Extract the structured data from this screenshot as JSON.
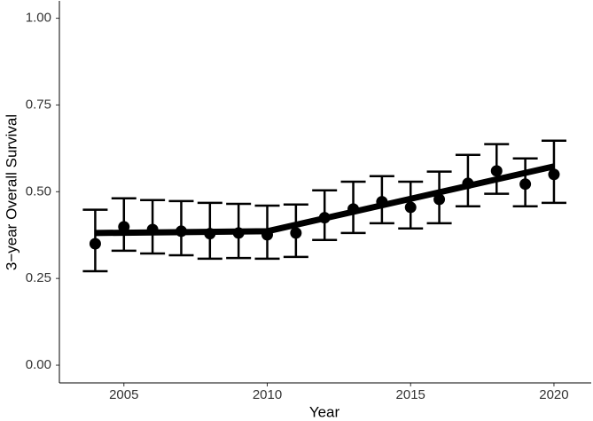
{
  "chart_data": {
    "type": "errorbar",
    "x_label": "Year",
    "y_label": "3−year Overall Survival",
    "x": [
      2004,
      2005,
      2006,
      2007,
      2008,
      2009,
      2010,
      2011,
      2012,
      2013,
      2014,
      2015,
      2016,
      2017,
      2018,
      2019,
      2020
    ],
    "values": [
      0.35,
      0.399,
      0.391,
      0.386,
      0.379,
      0.381,
      0.376,
      0.381,
      0.425,
      0.45,
      0.471,
      0.455,
      0.478,
      0.524,
      0.56,
      0.522,
      0.55
    ],
    "lower": [
      0.271,
      0.33,
      0.322,
      0.317,
      0.307,
      0.309,
      0.307,
      0.312,
      0.361,
      0.381,
      0.409,
      0.394,
      0.409,
      0.458,
      0.494,
      0.458,
      0.468
    ],
    "upper": [
      0.448,
      0.481,
      0.476,
      0.473,
      0.468,
      0.465,
      0.46,
      0.463,
      0.504,
      0.529,
      0.545,
      0.529,
      0.558,
      0.606,
      0.637,
      0.596,
      0.647
    ],
    "fit": {
      "x": [
        2004,
        2010,
        2020
      ],
      "values": [
        0.381,
        0.386,
        0.573
      ]
    },
    "color": "#000000",
    "xlim": [
      2002.75,
      2021.3
    ],
    "ylim": [
      -0.051,
      1.05
    ],
    "xticks": [
      2005,
      2010,
      2015,
      2020
    ],
    "yticks": [
      {
        "value": 0,
        "label": "0.00"
      },
      {
        "value": 0.25,
        "label": "0.25"
      },
      {
        "value": 0.5,
        "label": "0.50"
      },
      {
        "value": 0.75,
        "label": "0.75"
      },
      {
        "value": 1,
        "label": "1.00"
      }
    ],
    "grid": false
  }
}
